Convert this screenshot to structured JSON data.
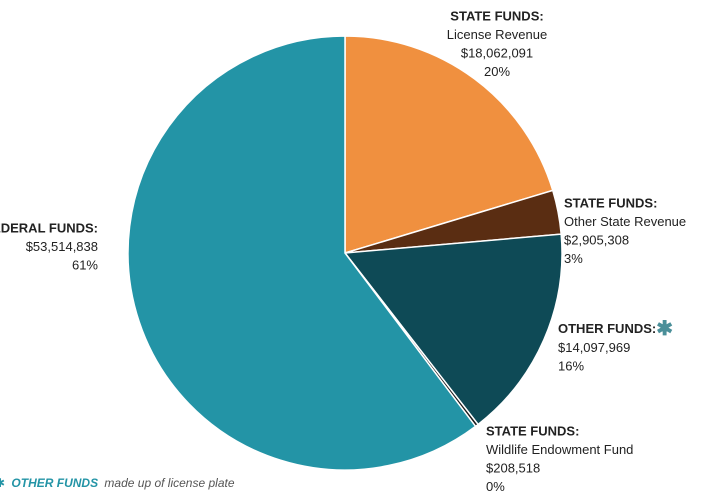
{
  "chart_data": {
    "type": "pie",
    "categories": [
      "STATE FUNDS:",
      "STATE FUNDS:",
      "OTHER FUNDS:",
      "STATE FUNDS:",
      "FEDERAL FUNDS:"
    ],
    "subcategories": [
      "License Revenue",
      "Other State Revenue",
      null,
      "Wildlife Endowment Fund",
      null
    ],
    "values": [
      18062091,
      2905308,
      14097969,
      208518,
      53514838
    ],
    "value_labels": [
      "$18,062,091",
      "$2,905,308",
      "$14,097,969",
      "$208,518",
      "$53,514,838"
    ],
    "percents": [
      20,
      3,
      16,
      0,
      61
    ],
    "percent_labels": [
      "20%",
      "3%",
      "16%",
      "0%",
      "61%"
    ],
    "colors": [
      "#f0903f",
      "#5a2d12",
      "#0e4a56",
      "#1a1a1a",
      "#2394a6"
    ],
    "note_marker": "✱",
    "footnote_emphasis": "OTHER FUNDS",
    "footnote": "made up of license plate"
  }
}
